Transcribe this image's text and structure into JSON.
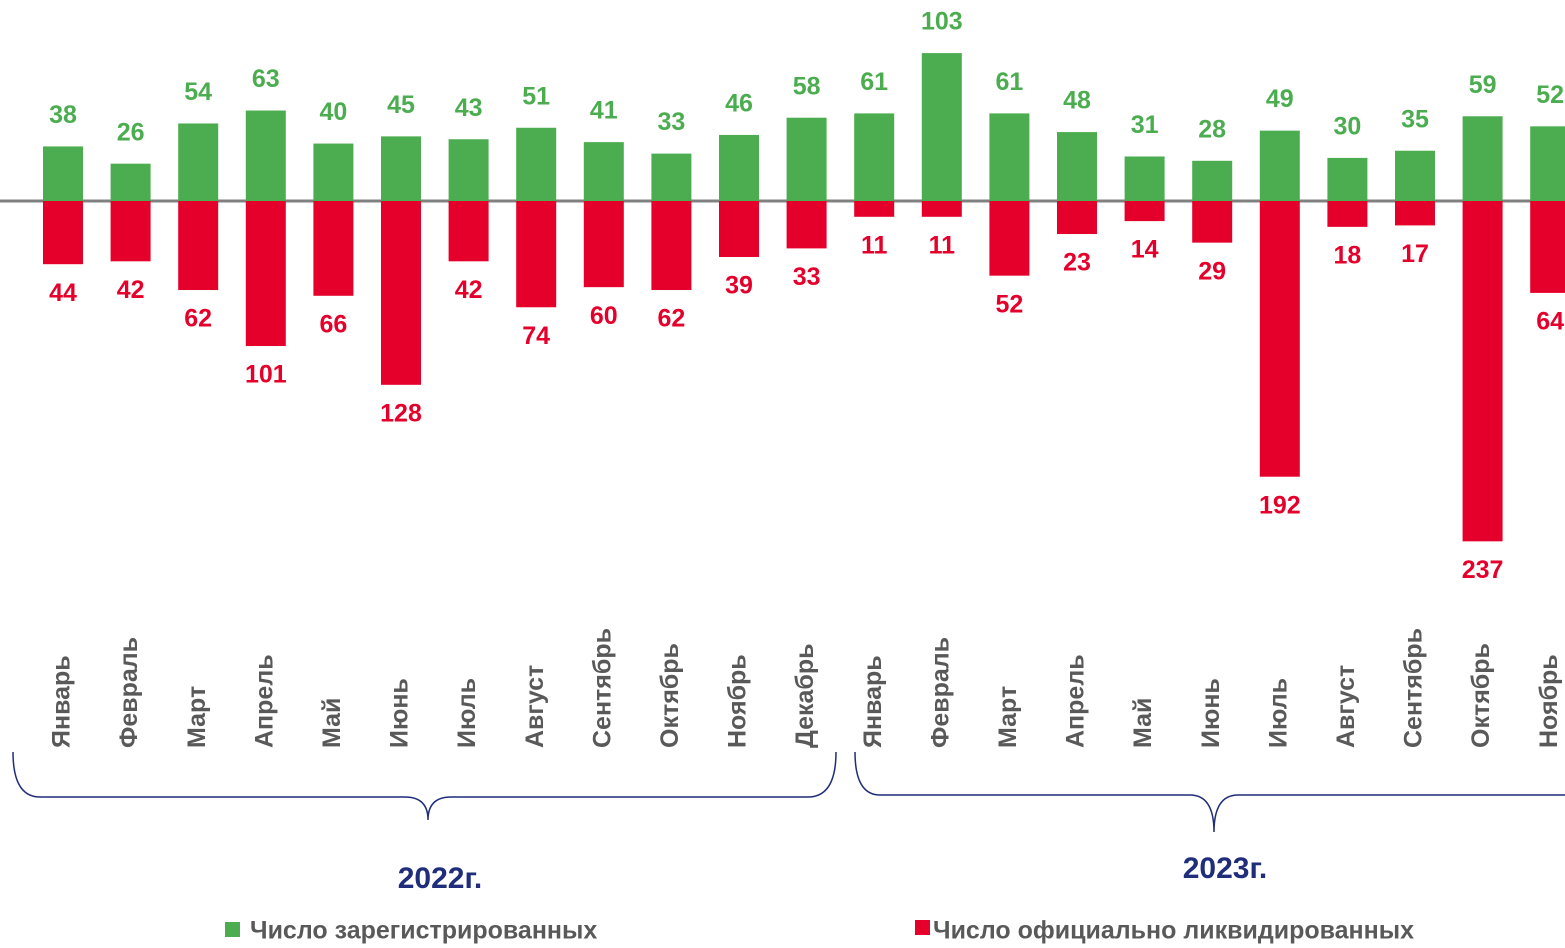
{
  "chart_data": {
    "type": "bar",
    "categories": [
      "Январь",
      "Февраль",
      "Март",
      "Апрель",
      "Май",
      "Июнь",
      "Июль",
      "Август",
      "Сентябрь",
      "Октябрь",
      "Ноябрь",
      "Декабрь",
      "Январь",
      "Февраль",
      "Март",
      "Апрель",
      "Май",
      "Июнь",
      "Июль",
      "Август",
      "Сентябрь",
      "Октябрь",
      "Ноябрь"
    ],
    "series": [
      {
        "name": "Число зарегистрированных",
        "color": "#4cad50",
        "values": [
          38,
          26,
          54,
          63,
          40,
          45,
          43,
          51,
          41,
          33,
          46,
          58,
          61,
          103,
          61,
          48,
          31,
          28,
          49,
          30,
          35,
          59,
          52
        ]
      },
      {
        "name": "Число официально ликвидированных",
        "color": "#e4002b",
        "values": [
          44,
          42,
          62,
          101,
          66,
          128,
          42,
          74,
          60,
          62,
          39,
          33,
          11,
          11,
          52,
          23,
          14,
          29,
          192,
          18,
          17,
          237,
          64
        ]
      }
    ],
    "groups": [
      "2022г.",
      "2023г."
    ]
  }
}
